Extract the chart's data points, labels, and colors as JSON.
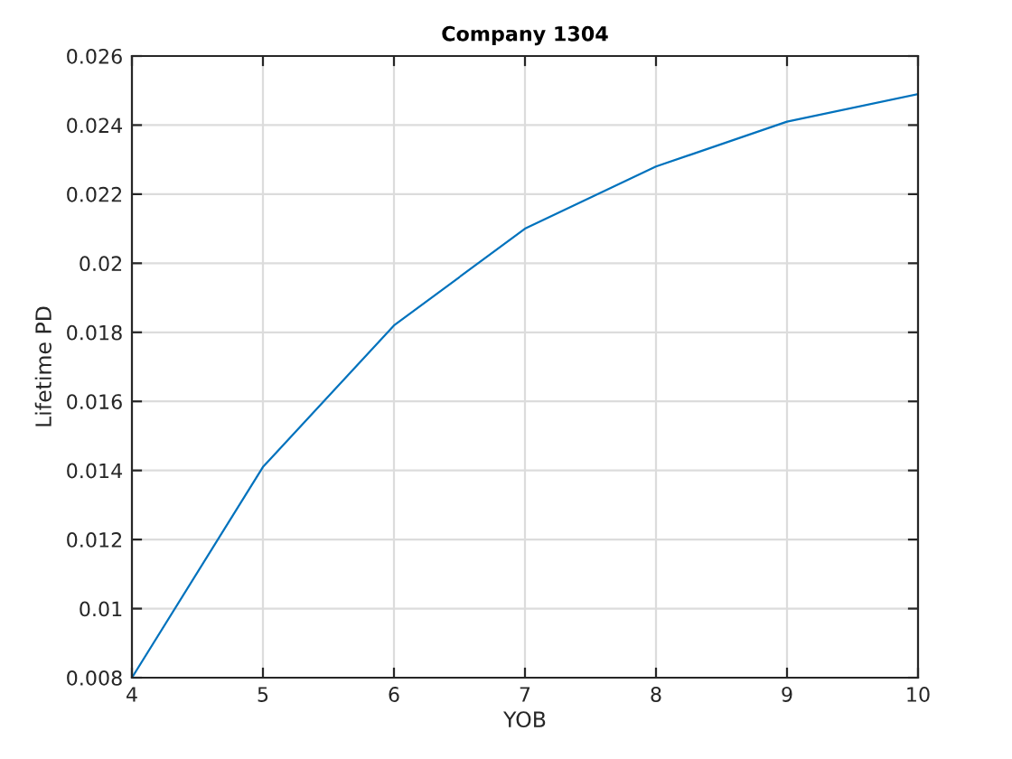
{
  "chart_data": {
    "type": "line",
    "title": "Company 1304",
    "xlabel": "YOB",
    "ylabel": "Lifetime PD",
    "x": [
      4,
      5,
      6,
      7,
      8,
      9,
      10
    ],
    "series": [
      {
        "color": "#0072bd",
        "values": [
          0.008,
          0.0141,
          0.0182,
          0.021,
          0.0228,
          0.0241,
          0.0249
        ]
      }
    ],
    "xlim": [
      4,
      10
    ],
    "xticks": [
      4,
      5,
      6,
      7,
      8,
      9,
      10
    ],
    "ylim": [
      0.008,
      0.026
    ],
    "yticks": [
      0.008,
      0.01,
      0.012,
      0.014,
      0.016,
      0.018,
      0.02,
      0.022,
      0.024,
      0.026
    ],
    "grid": true,
    "marker": "none",
    "line_style": "solid"
  }
}
